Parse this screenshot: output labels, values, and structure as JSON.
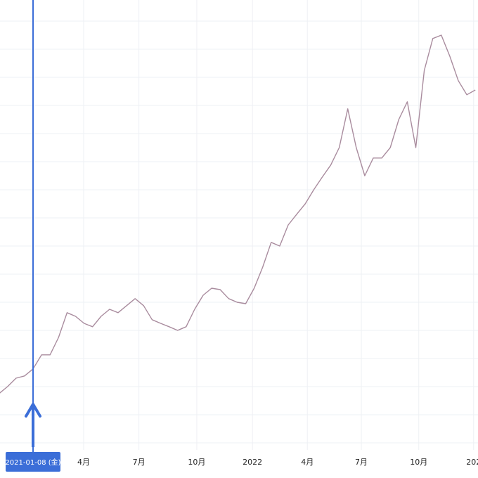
{
  "chart_data": {
    "type": "line",
    "color": "#a98c9e",
    "marker_color": "#3b6ed8",
    "grid": true,
    "x": [
      -8,
      -6,
      -4,
      -2,
      0,
      2,
      4,
      6,
      8,
      10,
      12,
      14,
      16,
      18,
      20,
      22,
      24,
      26,
      28,
      30,
      32,
      34,
      36,
      38,
      40,
      42,
      44,
      46,
      48,
      50,
      52,
      54,
      56,
      58,
      60,
      62,
      64,
      66,
      68,
      70,
      72,
      74,
      76,
      78,
      80,
      82,
      84,
      86,
      88,
      90,
      92,
      94,
      96,
      98,
      100,
      102,
      104
    ],
    "values": [
      1.75,
      2.0,
      2.3,
      2.38,
      2.63,
      3.13,
      3.13,
      3.75,
      4.63,
      4.5,
      4.25,
      4.13,
      4.5,
      4.75,
      4.63,
      4.88,
      5.13,
      4.88,
      4.38,
      4.25,
      4.13,
      4.0,
      4.13,
      4.75,
      5.25,
      5.5,
      5.45,
      5.13,
      5.0,
      4.95,
      5.5,
      6.25,
      7.13,
      7.0,
      7.75,
      8.13,
      8.5,
      9.0,
      9.45,
      9.88,
      10.5,
      11.88,
      10.5,
      9.5,
      10.13,
      10.13,
      10.5,
      11.5,
      12.13,
      10.5,
      13.25,
      14.38,
      14.5,
      13.75,
      12.88,
      12.38,
      12.55
    ],
    "xlim": [
      -7.77,
      104.63
    ],
    "xticks": [
      {
        "value": 11.9,
        "label": "4月"
      },
      {
        "value": 24.9,
        "label": "7月"
      },
      {
        "value": 38.5,
        "label": "10月"
      },
      {
        "value": 51.6,
        "label": "2022"
      },
      {
        "value": 64.5,
        "label": "4月"
      },
      {
        "value": 77.2,
        "label": "7月"
      },
      {
        "value": 90.7,
        "label": "10月"
      },
      {
        "value": 103.6,
        "label": "202"
      }
    ],
    "ylim": [
      -0.25,
      15.75
    ],
    "yticks": [
      0,
      1,
      2,
      3,
      4,
      5,
      6,
      7,
      8,
      9,
      10,
      11,
      12,
      13,
      14,
      15
    ],
    "marker": {
      "x": 0,
      "label": "2021-01-08 (金)"
    }
  }
}
